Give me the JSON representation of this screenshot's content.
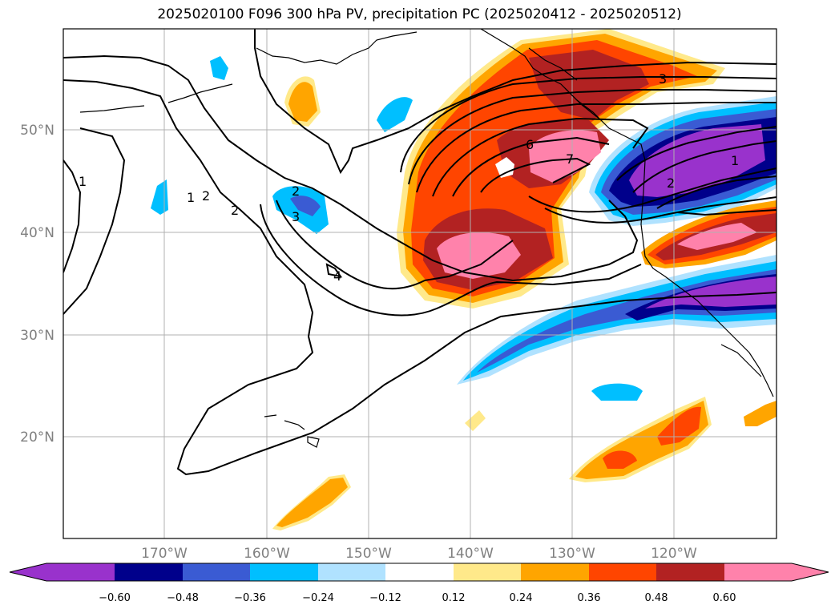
{
  "title": "2025020100 F096 300 hPa PV, precipitation PC (2025020412 - 2025020512)",
  "map": {
    "lat_ticks": [
      "50°N",
      "40°N",
      "30°N",
      "20°N"
    ],
    "lon_ticks": [
      "170°W",
      "160°W",
      "150°W",
      "140°W",
      "130°W",
      "120°W"
    ],
    "gridlines": true
  },
  "pv_contours": {
    "labels": [
      "1",
      "2",
      "2",
      "1",
      "2",
      "3",
      "4",
      "3",
      "6",
      "7",
      "1",
      "2"
    ]
  },
  "colorbar": {
    "extend": "both",
    "tick_labels": [
      "−0.60",
      "−0.48",
      "−0.36",
      "−0.24",
      "−0.12",
      "0.12",
      "0.24",
      "0.36",
      "0.48",
      "0.60"
    ],
    "colors": [
      "#9932CC",
      "#00008B",
      "#3A5BD3",
      "#00BFFF",
      "#B0E2FF",
      "#FFFFFF",
      "#FFE98A",
      "#FFA500",
      "#FF4500",
      "#B22222",
      "#FF82AB"
    ]
  }
}
